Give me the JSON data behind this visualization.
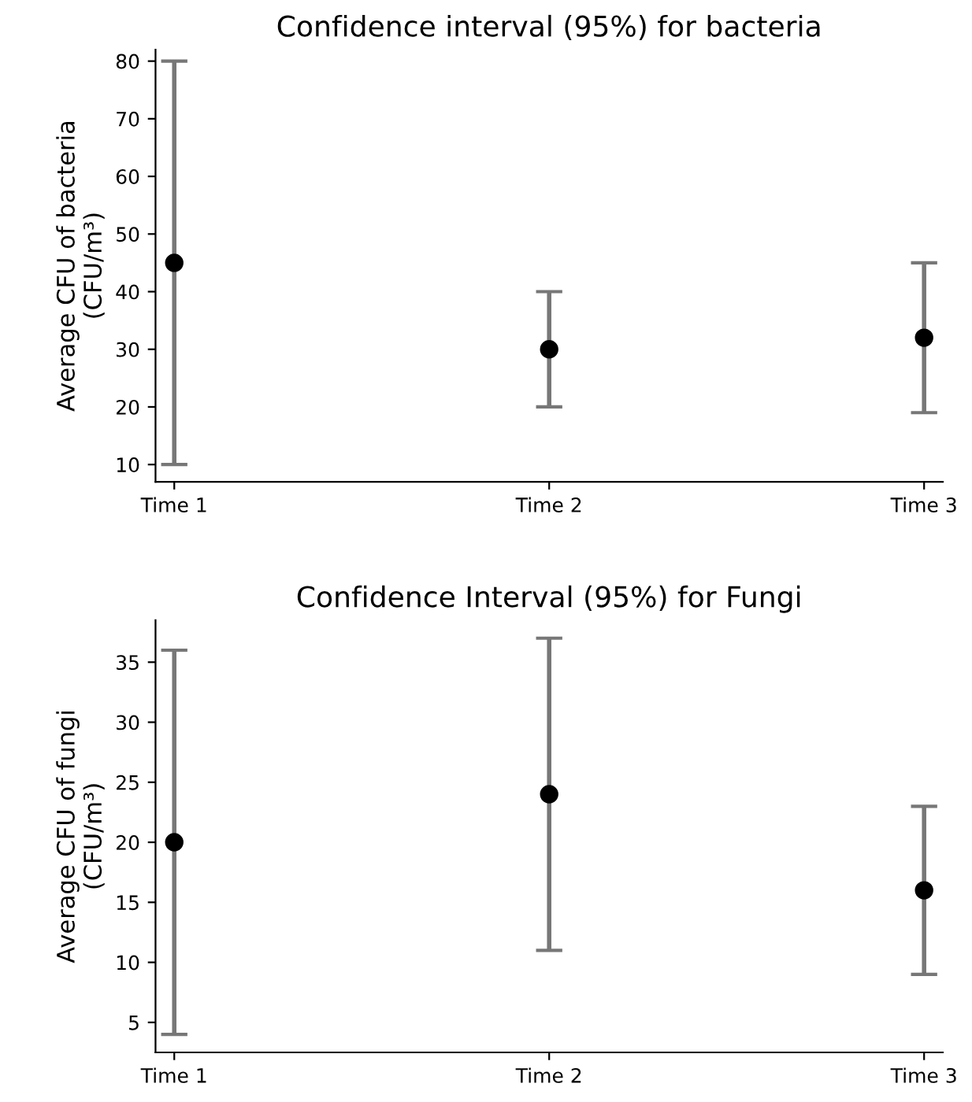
{
  "chart_data": [
    {
      "type": "scatter",
      "title": "Confidence interval (95%) for bacteria",
      "ylabel": "Average CFU of bacteria\n(CFU/m³)",
      "categories": [
        "Time 1",
        "Time 2",
        "Time 3"
      ],
      "values": [
        45,
        30,
        32
      ],
      "errors": [
        [
          10,
          80
        ],
        [
          20,
          40
        ],
        [
          19,
          45
        ]
      ],
      "color": "#000000",
      "ylim": [
        7,
        82
      ],
      "yticks": [
        10,
        20,
        30,
        40,
        50,
        60,
        70,
        80
      ],
      "grid": false,
      "marker": "circle"
    },
    {
      "type": "scatter",
      "title": "Confidence Interval (95%) for Fungi",
      "ylabel": "Average CFU of fungi\n(CFU/m³)",
      "categories": [
        "Time 1",
        "Time 2",
        "Time 3"
      ],
      "values": [
        20,
        24,
        16
      ],
      "errors": [
        [
          4,
          36
        ],
        [
          11,
          37
        ],
        [
          9,
          23
        ]
      ],
      "color": "#000000",
      "ylim": [
        2.5,
        38.5
      ],
      "yticks": [
        5,
        10,
        15,
        20,
        25,
        30,
        35
      ],
      "grid": false,
      "marker": "circle"
    }
  ]
}
